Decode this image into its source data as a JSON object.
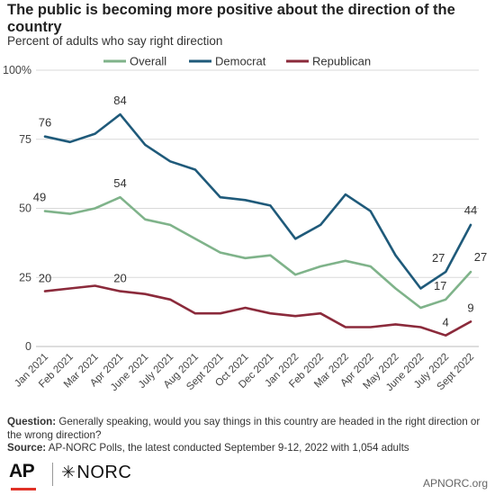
{
  "chart_data": {
    "type": "line",
    "title": "The public is becoming more positive about the direction of the country",
    "subtitle": "Percent of adults who say right direction",
    "categories": [
      "Jan 2021",
      "Feb 2021",
      "Mar 2021",
      "Apr 2021",
      "June 2021",
      "July 2021",
      "Aug 2021",
      "Sept 2021",
      "Oct 2021",
      "Dec 2021",
      "Jan 2022",
      "Feb 2022",
      "Mar 2022",
      "Apr 2022",
      "May 2022",
      "June 2022",
      "July 2022",
      "Sept 2022"
    ],
    "ylim": [
      0,
      100
    ],
    "yticks": [
      0,
      25,
      50,
      75,
      100
    ],
    "ytick_labels": [
      "0",
      "25",
      "50",
      "75",
      "100%"
    ],
    "legend_position": "top",
    "grid": "horizontal",
    "series": [
      {
        "name": "Overall",
        "color": "#7fb38a",
        "values": [
          49,
          48,
          50,
          54,
          46,
          44,
          39,
          34,
          32,
          33,
          26,
          29,
          31,
          29,
          21,
          14,
          17,
          27
        ],
        "labels": {
          "0": "49",
          "3": "54",
          "16": "17",
          "17": "27"
        }
      },
      {
        "name": "Democrat",
        "color": "#1f5a7a",
        "values": [
          76,
          74,
          77,
          84,
          73,
          67,
          64,
          54,
          53,
          51,
          39,
          44,
          55,
          49,
          33,
          21,
          27,
          44
        ],
        "labels": {
          "0": "76",
          "3": "84",
          "16": "27",
          "17": "44"
        }
      },
      {
        "name": "Republican",
        "color": "#8b2a3b",
        "values": [
          20,
          21,
          22,
          20,
          19,
          17,
          12,
          12,
          14,
          12,
          11,
          12,
          7,
          7,
          8,
          7,
          4,
          9
        ],
        "labels": {
          "0": "20",
          "3": "20",
          "16": "4",
          "17": "9"
        }
      }
    ]
  },
  "footer": {
    "question_label": "Question:",
    "question_text": " Generally speaking, would you say things in this country are headed in the right direction or the wrong direction?",
    "source_label": "Source:",
    "source_text": " AP-NORC Polls, the latest conducted September 9-12, 2022 with 1,054 adults"
  },
  "branding": {
    "ap_logo": "AP",
    "norc_logo": "NORC",
    "norc_star": "✳",
    "website": "APNORC.org"
  }
}
